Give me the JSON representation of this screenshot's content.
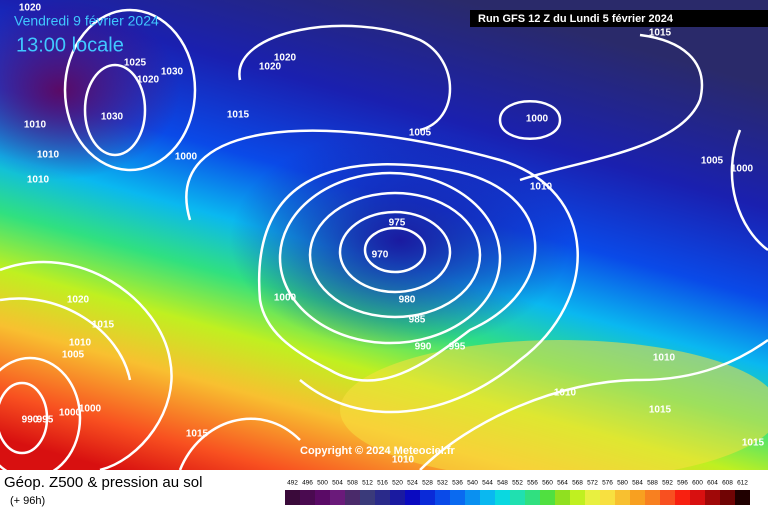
{
  "header": {
    "valid_date": "Vendredi 9 février 2024",
    "local_time": "13:00 locale",
    "run": "Run GFS 12 Z du Lundi 5 février 2024"
  },
  "footer": {
    "title": "Géop. Z500 & pression au sol",
    "lead": "(+ 96h)",
    "copyright": "Copyright © 2024 Meteociel.fr"
  },
  "colorbar": {
    "ticks": [
      492,
      496,
      500,
      504,
      508,
      512,
      516,
      520,
      524,
      528,
      532,
      536,
      540,
      544,
      548,
      552,
      556,
      560,
      564,
      568,
      572,
      576,
      580,
      584,
      588,
      592,
      596,
      600,
      604,
      608,
      612
    ],
    "colors": [
      "#3a0a3a",
      "#4a0a50",
      "#5a0a66",
      "#6a1a7a",
      "#4a2a6a",
      "#3a3a7a",
      "#2a2a8a",
      "#1a1aa0",
      "#0a0ac0",
      "#0a2ad8",
      "#0a4ae8",
      "#0a6af0",
      "#0a90f0",
      "#0ab8f0",
      "#0ad8e0",
      "#20e0b0",
      "#30e080",
      "#50e040",
      "#90e020",
      "#c0f020",
      "#e8f040",
      "#f8e040",
      "#f8c030",
      "#f8a020",
      "#f88020",
      "#f85020",
      "#f82010",
      "#d81010",
      "#a00808",
      "#700404",
      "#200000"
    ]
  },
  "isobars": [
    1020,
    1025,
    1030,
    1020,
    1030,
    1010,
    1010,
    1010,
    1020,
    1020,
    1015,
    1000,
    1005,
    1000,
    1015,
    1005,
    1000,
    1010,
    975,
    970,
    980,
    985,
    990,
    995,
    1000,
    1020,
    1015,
    1010,
    1005,
    990,
    995,
    1000,
    1000,
    1015,
    1010,
    1010,
    1010,
    1015,
    1015
  ]
}
